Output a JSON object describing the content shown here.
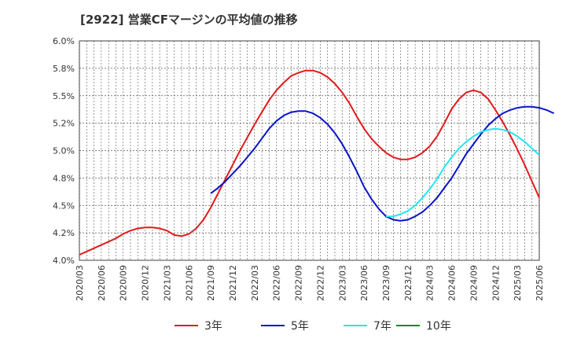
{
  "chart_data": {
    "type": "line",
    "title": "[2922]  営業CFマージンの平均値の推移",
    "xlabel": "",
    "ylabel": "",
    "ylim": [
      4.0,
      6.0
    ],
    "y_ticks": [
      "4.0%",
      "4.2%",
      "4.5%",
      "4.8%",
      "5.0%",
      "5.2%",
      "5.5%",
      "5.8%",
      "6.0%"
    ],
    "x_ticks": [
      "2020/03",
      "2020/06",
      "2020/09",
      "2020/12",
      "2021/03",
      "2021/06",
      "2021/09",
      "2021/12",
      "2022/03",
      "2022/06",
      "2022/09",
      "2022/12",
      "2023/03",
      "2023/06",
      "2023/09",
      "2023/12",
      "2024/03",
      "2024/06",
      "2024/09",
      "2024/12",
      "2025/03",
      "2025/06"
    ],
    "grid": true,
    "legend_position": "bottom",
    "series": [
      {
        "name": "3年",
        "color": "#e31a1c",
        "start": "2020/03",
        "values": [
          4.05,
          4.08,
          4.11,
          4.14,
          4.17,
          4.2,
          4.24,
          4.27,
          4.29,
          4.3,
          4.3,
          4.29,
          4.27,
          4.23,
          4.22,
          4.24,
          4.29,
          4.37,
          4.48,
          4.61,
          4.74,
          4.87,
          5.0,
          5.12,
          5.24,
          5.35,
          5.46,
          5.55,
          5.62,
          5.68,
          5.71,
          5.73,
          5.73,
          5.71,
          5.67,
          5.61,
          5.53,
          5.43,
          5.31,
          5.2,
          5.11,
          5.04,
          4.98,
          4.94,
          4.92,
          4.92,
          4.94,
          4.98,
          5.04,
          5.13,
          5.25,
          5.38,
          5.47,
          5.53,
          5.55,
          5.53,
          5.47,
          5.37,
          5.26,
          5.14,
          5.01,
          4.87,
          4.72,
          4.57
        ]
      },
      {
        "name": "5年",
        "color": "#0a14c8",
        "start": "2021/09",
        "values": [
          4.61,
          4.66,
          4.72,
          4.79,
          4.86,
          4.94,
          5.02,
          5.11,
          5.2,
          5.27,
          5.32,
          5.35,
          5.36,
          5.36,
          5.34,
          5.3,
          5.24,
          5.16,
          5.06,
          4.94,
          4.81,
          4.67,
          4.56,
          4.47,
          4.4,
          4.37,
          4.36,
          4.37,
          4.4,
          4.44,
          4.5,
          4.57,
          4.66,
          4.75,
          4.86,
          4.97,
          5.06,
          5.15,
          5.23,
          5.29,
          5.34,
          5.37,
          5.39,
          5.4,
          5.4,
          5.39,
          5.37,
          5.34
        ]
      },
      {
        "name": "7年",
        "color": "#22e6f0",
        "start": "2023/09",
        "values": [
          4.4,
          4.4,
          4.42,
          4.45,
          4.5,
          4.57,
          4.65,
          4.74,
          4.85,
          4.94,
          5.02,
          5.08,
          5.13,
          5.17,
          5.19,
          5.2,
          5.19,
          5.17,
          5.13,
          5.08,
          5.02,
          4.96
        ]
      },
      {
        "name": "10年",
        "color": "#1a8a1a",
        "start": "2025/03",
        "values": []
      }
    ]
  }
}
